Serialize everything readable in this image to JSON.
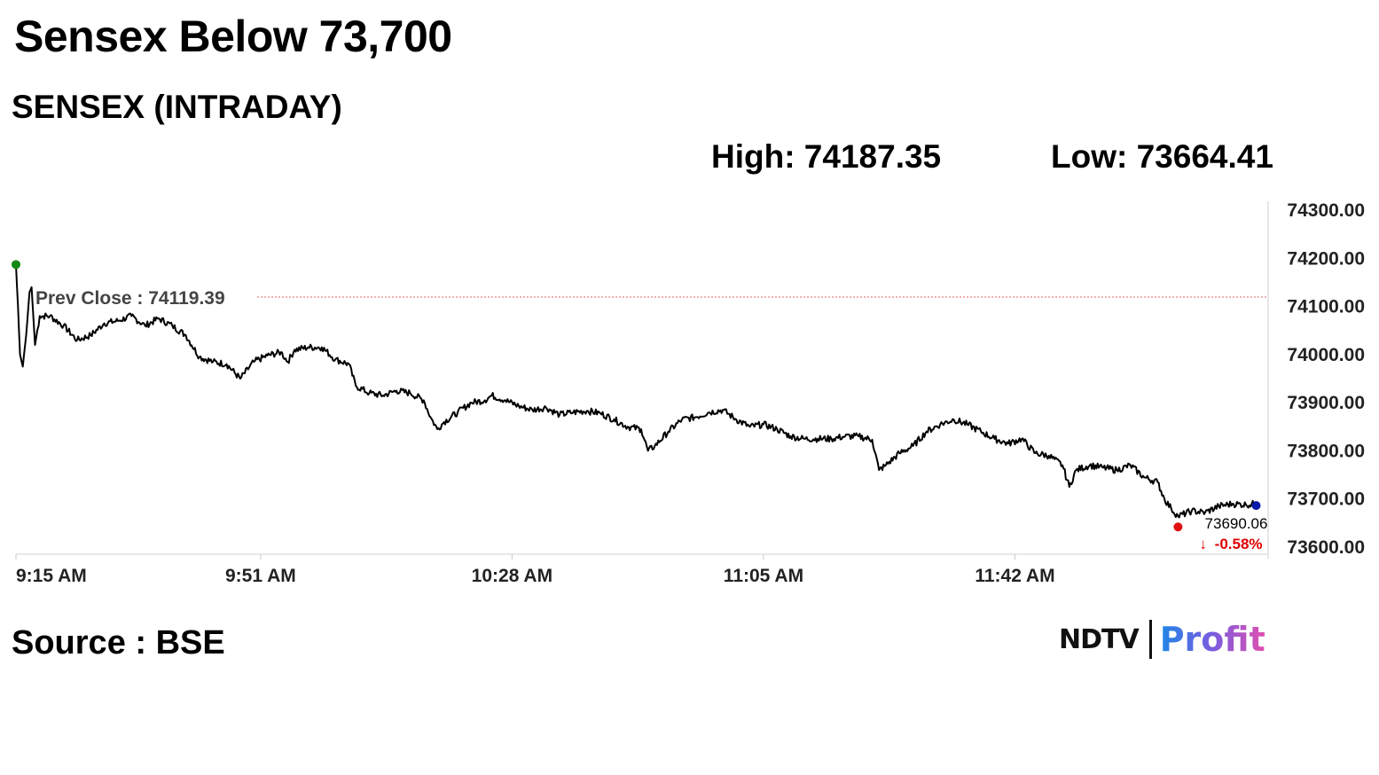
{
  "headline": "Sensex Below 73,700",
  "chart_data": {
    "type": "line",
    "title": "SENSEX (INTRADAY)",
    "high_label": "High: 74187.35",
    "low_label": "Low: 73664.41",
    "prev_close": 74119.39,
    "prev_close_label": "Prev Close : 74119.39",
    "last_value_label": "73690.06",
    "change_label": "-0.58%",
    "change_arrow": "↓",
    "ylim": [
      73600,
      74300
    ],
    "y_ticks": [
      74300,
      74200,
      74100,
      74000,
      73900,
      73800,
      73700,
      73600
    ],
    "y_tick_labels": [
      "74300.00",
      "74200.00",
      "74100.00",
      "74000.00",
      "73900.00",
      "73800.00",
      "73700.00",
      "73600.00"
    ],
    "x_ticks": [
      "9:15 AM",
      "9:51 AM",
      "10:28 AM",
      "11:05 AM",
      "11:42 AM"
    ],
    "x_tick_minutes": [
      555,
      591,
      628,
      665,
      702
    ],
    "xlim_minutes": [
      555,
      739
    ],
    "series": [
      {
        "values": [
          [
            555.0,
            74187
          ],
          [
            555.3,
            74100
          ],
          [
            555.6,
            74000
          ],
          [
            556.0,
            73975
          ],
          [
            556.5,
            74040
          ],
          [
            557.0,
            74130
          ],
          [
            557.3,
            74140
          ],
          [
            557.8,
            74020
          ],
          [
            558.5,
            74080
          ],
          [
            560,
            74080
          ],
          [
            562,
            74060
          ],
          [
            564,
            74030
          ],
          [
            566,
            74040
          ],
          [
            568,
            74065
          ],
          [
            570,
            74070
          ],
          [
            572,
            74080
          ],
          [
            574,
            74060
          ],
          [
            576,
            74075
          ],
          [
            578,
            74060
          ],
          [
            580,
            74040
          ],
          [
            582,
            73995
          ],
          [
            584,
            73985
          ],
          [
            586,
            73980
          ],
          [
            588,
            73950
          ],
          [
            590,
            73985
          ],
          [
            592,
            73998
          ],
          [
            594,
            74005
          ],
          [
            595,
            73985
          ],
          [
            596,
            74010
          ],
          [
            598,
            74015
          ],
          [
            600,
            74015
          ],
          [
            602,
            73990
          ],
          [
            604,
            73980
          ],
          [
            605,
            73935
          ],
          [
            607,
            73920
          ],
          [
            609,
            73915
          ],
          [
            611,
            73925
          ],
          [
            613,
            73920
          ],
          [
            615,
            73905
          ],
          [
            616,
            73870
          ],
          [
            617,
            73845
          ],
          [
            618,
            73860
          ],
          [
            620,
            73880
          ],
          [
            622,
            73900
          ],
          [
            624,
            73905
          ],
          [
            625,
            73915
          ],
          [
            627,
            73905
          ],
          [
            629,
            73893
          ],
          [
            631,
            73885
          ],
          [
            633,
            73890
          ],
          [
            635,
            73875
          ],
          [
            637,
            73880
          ],
          [
            639,
            73883
          ],
          [
            641,
            73878
          ],
          [
            643,
            73865
          ],
          [
            645,
            73850
          ],
          [
            647,
            73845
          ],
          [
            648,
            73800
          ],
          [
            649,
            73810
          ],
          [
            651,
            73840
          ],
          [
            653,
            73865
          ],
          [
            655,
            73870
          ],
          [
            657,
            73880
          ],
          [
            659,
            73885
          ],
          [
            661,
            73865
          ],
          [
            663,
            73850
          ],
          [
            665,
            73855
          ],
          [
            667,
            73845
          ],
          [
            669,
            73830
          ],
          [
            671,
            73825
          ],
          [
            673,
            73825
          ],
          [
            675,
            73825
          ],
          [
            677,
            73830
          ],
          [
            679,
            73830
          ],
          [
            681,
            73823
          ],
          [
            682,
            73760
          ],
          [
            683,
            73770
          ],
          [
            685,
            73795
          ],
          [
            687,
            73810
          ],
          [
            689,
            73840
          ],
          [
            691,
            73855
          ],
          [
            693,
            73865
          ],
          [
            695,
            73855
          ],
          [
            697,
            73840
          ],
          [
            699,
            73825
          ],
          [
            701,
            73815
          ],
          [
            703,
            73825
          ],
          [
            705,
            73795
          ],
          [
            707,
            73790
          ],
          [
            709,
            73770
          ],
          [
            710,
            73725
          ],
          [
            711,
            73760
          ],
          [
            713,
            73770
          ],
          [
            715,
            73765
          ],
          [
            717,
            73760
          ],
          [
            719,
            73770
          ],
          [
            721,
            73745
          ],
          [
            723,
            73735
          ],
          [
            724,
            73700
          ],
          [
            725,
            73680
          ],
          [
            726,
            73664
          ],
          [
            728,
            73675
          ],
          [
            730,
            73672
          ],
          [
            732,
            73685
          ],
          [
            734,
            73690
          ],
          [
            736,
            73688
          ],
          [
            737.5,
            73690
          ]
        ]
      }
    ],
    "colors": {
      "line": "#000000",
      "prev_close_line": "#e06060",
      "open_marker": "#138a13",
      "low_marker": "#e01010",
      "last_marker": "#0a1aa8",
      "change": "#e00000"
    }
  },
  "footer": {
    "source": "Source : BSE",
    "logo_left": "NDTV",
    "logo_right": "Profit"
  }
}
